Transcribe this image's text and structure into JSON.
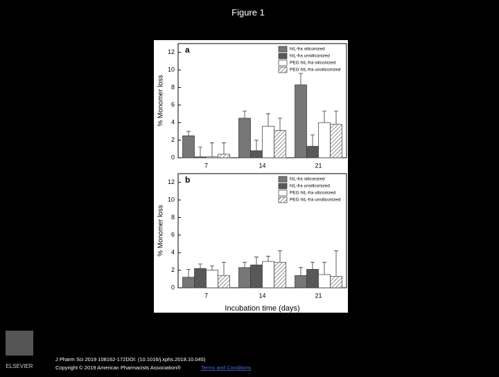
{
  "page": {
    "title": "Figure 1",
    "citation": "J Pharm Sci 2019 108162-172DOI: (10.1016/j.xphs.2018.10.045)",
    "copyright": "Copyright © 2019 American Pharmacists Association®",
    "link": "Terms and Conditions",
    "logo": "ELSEVIER"
  },
  "chart_data": [
    {
      "type": "bar",
      "panel": "a",
      "ylabel": "% Monomer loss",
      "categories": [
        "7",
        "14",
        "21"
      ],
      "ylim": [
        0,
        13
      ],
      "yticks": [
        0,
        2,
        4,
        6,
        8,
        10,
        12
      ],
      "legend": "top-right",
      "series": [
        {
          "name": "hIL-fra siliconized",
          "color": "#777777",
          "hatch": false,
          "values": [
            2.5,
            4.5,
            8.3
          ],
          "errors": [
            0.5,
            0.8,
            1.3
          ]
        },
        {
          "name": "hIL-fra unsiliconized",
          "color": "#555555",
          "hatch": true,
          "values": [
            0.1,
            0.8,
            1.3
          ],
          "errors": [
            1.1,
            1.2,
            1.3
          ]
        },
        {
          "name": "PEG hIL-fra siliconized",
          "color": "#ffffff",
          "hatch": false,
          "values": [
            0.1,
            3.6,
            4.0
          ],
          "errors": [
            1.6,
            1.4,
            1.3
          ]
        },
        {
          "name": "PEG hIL-fra unsiliconized",
          "color": "#ffffff",
          "hatch": true,
          "values": [
            0.4,
            3.1,
            3.8
          ],
          "errors": [
            1.3,
            1.4,
            1.5
          ]
        }
      ]
    },
    {
      "type": "bar",
      "panel": "b",
      "ylabel": "% Monomer loss",
      "xlabel": "Incubation time (days)",
      "categories": [
        "7",
        "14",
        "21"
      ],
      "ylim": [
        0,
        13
      ],
      "yticks": [
        0,
        2,
        4,
        6,
        8,
        10,
        12
      ],
      "legend": "top-right",
      "series": [
        {
          "name": "hIL-fra siliconized",
          "color": "#777777",
          "hatch": false,
          "values": [
            1.2,
            2.3,
            1.4
          ],
          "errors": [
            0.9,
            0.6,
            0.9
          ]
        },
        {
          "name": "hIL-fra unsiliconized",
          "color": "#555555",
          "hatch": true,
          "values": [
            2.2,
            2.6,
            2.1
          ],
          "errors": [
            0.5,
            0.9,
            0.8
          ]
        },
        {
          "name": "PEG hIL-fra siliconized",
          "color": "#ffffff",
          "hatch": false,
          "values": [
            2.0,
            3.0,
            1.5
          ],
          "errors": [
            0.5,
            0.6,
            1.4
          ]
        },
        {
          "name": "PEG hIL-fra unsiliconized",
          "color": "#ffffff",
          "hatch": true,
          "values": [
            1.4,
            2.9,
            1.3
          ],
          "errors": [
            1.5,
            1.3,
            2.9
          ]
        }
      ]
    }
  ]
}
